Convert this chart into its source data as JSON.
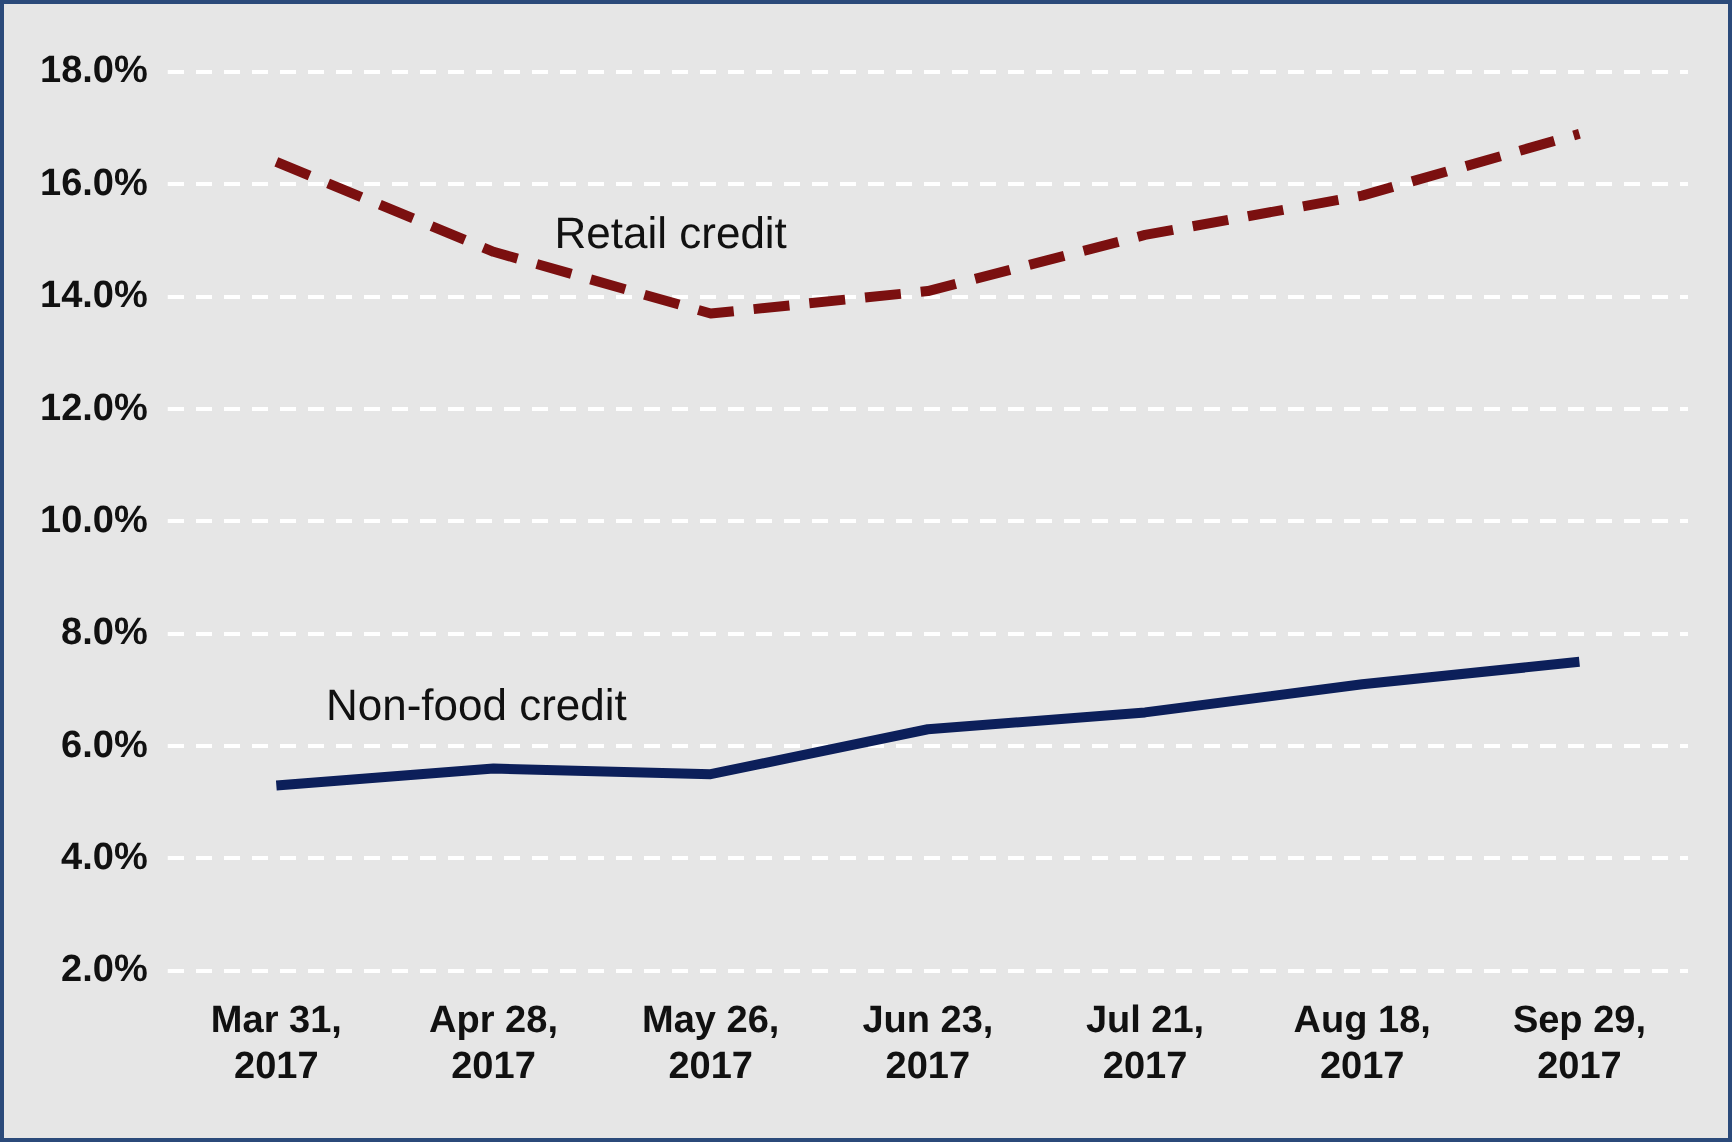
{
  "chart_data": {
    "type": "line",
    "categories": [
      "Mar 31, 2017",
      "Apr 28, 2017",
      "May 26, 2017",
      "Jun 23, 2017",
      "Jul 21, 2017",
      "Aug 18, 2017",
      "Sep 29, 2017"
    ],
    "series": [
      {
        "name": "Retail credit",
        "color": "#7b1010",
        "line_style": "dashed",
        "values": [
          16.4,
          14.8,
          13.7,
          14.1,
          15.1,
          15.8,
          16.9
        ]
      },
      {
        "name": "Non-food credit",
        "color": "#0c1f5a",
        "line_style": "solid",
        "values": [
          5.3,
          5.6,
          5.5,
          6.3,
          6.6,
          7.1,
          7.5
        ]
      }
    ],
    "ylim": [
      2,
      18
    ],
    "yticks": [
      {
        "value": 2,
        "label": "2.0%"
      },
      {
        "value": 4,
        "label": "4.0%"
      },
      {
        "value": 6,
        "label": "6.0%"
      },
      {
        "value": 8,
        "label": "8.0%"
      },
      {
        "value": 10,
        "label": "10.0%"
      },
      {
        "value": 12,
        "label": "12.0%"
      },
      {
        "value": 14,
        "label": "14.0%"
      },
      {
        "value": 16,
        "label": "16.0%"
      },
      {
        "value": 18,
        "label": "18.0%"
      }
    ],
    "grid": "y",
    "legend": false,
    "marker": "none"
  }
}
